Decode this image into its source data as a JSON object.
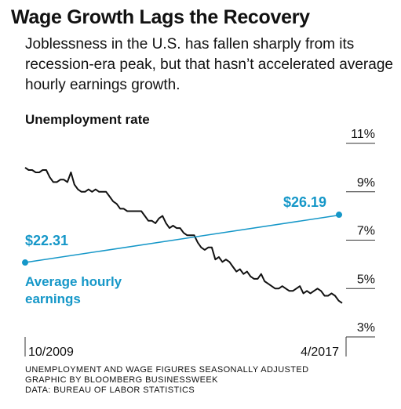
{
  "chart_data": {
    "type": "line",
    "title": "Wage Growth Lags the Recovery",
    "subtitle": "Joblessness in the U.S. has fallen sharply from its recession-era peak, but that hasn’t accelerated average hourly earnings growth.",
    "notes": [
      "UNEMPLOYMENT AND WAGE FIGURES SEASONALLY ADJUSTED",
      "GRAPHIC BY BLOOMBERG BUSINESSWEEK",
      "DATA: BUREAU OF LABOR STATISTICS"
    ],
    "categories": [
      "10/2009",
      null,
      null,
      null,
      null,
      null,
      null,
      null,
      null,
      null,
      null,
      null,
      null,
      null,
      null,
      null,
      null,
      null,
      null,
      null,
      null,
      null,
      null,
      null,
      null,
      null,
      null,
      null,
      null,
      null,
      null,
      null,
      null,
      null,
      null,
      null,
      null,
      null,
      null,
      null,
      null,
      null,
      null,
      null,
      null,
      null,
      null,
      null,
      null,
      null,
      null,
      null,
      null,
      null,
      null,
      null,
      null,
      null,
      null,
      null,
      null,
      null,
      null,
      null,
      null,
      null,
      null,
      null,
      null,
      null,
      null,
      null,
      null,
      null,
      null,
      null,
      null,
      null,
      null,
      null,
      null,
      null,
      null,
      null,
      null,
      null,
      null,
      null,
      null,
      null,
      "4/2017"
    ],
    "series": [
      {
        "name": "Unemployment rate",
        "color": "#111111",
        "values": [
          10.0,
          9.9,
          9.9,
          9.8,
          9.8,
          9.9,
          9.9,
          9.6,
          9.4,
          9.4,
          9.5,
          9.5,
          9.4,
          9.8,
          9.3,
          9.1,
          9.0,
          9.0,
          9.1,
          9.0,
          9.1,
          9.0,
          9.0,
          9.0,
          8.8,
          8.6,
          8.5,
          8.3,
          8.3,
          8.2,
          8.2,
          8.2,
          8.2,
          8.2,
          8.0,
          7.8,
          7.8,
          7.7,
          7.9,
          8.0,
          7.7,
          7.5,
          7.6,
          7.5,
          7.5,
          7.3,
          7.2,
          7.2,
          7.2,
          6.9,
          6.7,
          6.6,
          6.7,
          6.7,
          6.2,
          6.3,
          6.1,
          6.2,
          6.1,
          5.9,
          5.7,
          5.8,
          5.6,
          5.7,
          5.5,
          5.4,
          5.4,
          5.6,
          5.3,
          5.2,
          5.1,
          5.0,
          5.0,
          5.1,
          5.0,
          4.9,
          4.9,
          5.0,
          5.1,
          4.8,
          4.9,
          4.8,
          4.9,
          5.0,
          4.9,
          4.7,
          4.7,
          4.8,
          4.7,
          4.5,
          4.4
        ]
      },
      {
        "name": "Average hourly earnings",
        "color": "#1597c8",
        "axis": "y2",
        "values": [
          22.31,
          null,
          null,
          null,
          null,
          null,
          null,
          null,
          null,
          null,
          null,
          null,
          null,
          null,
          null,
          null,
          null,
          null,
          null,
          null,
          null,
          null,
          null,
          null,
          null,
          null,
          null,
          null,
          null,
          null,
          null,
          null,
          null,
          null,
          null,
          null,
          null,
          null,
          null,
          null,
          null,
          null,
          null,
          null,
          null,
          null,
          null,
          null,
          null,
          null,
          null,
          null,
          null,
          null,
          null,
          null,
          null,
          null,
          null,
          null,
          null,
          null,
          null,
          null,
          null,
          null,
          null,
          null,
          null,
          null,
          null,
          null,
          null,
          null,
          null,
          null,
          null,
          null,
          null,
          null,
          null,
          null,
          null,
          null,
          null,
          null,
          null,
          null,
          null,
          null,
          26.19
        ],
        "value_labels": [
          "$22.31",
          null,
          null,
          null,
          null,
          null,
          null,
          null,
          null,
          null,
          null,
          null,
          null,
          null,
          null,
          null,
          null,
          null,
          null,
          null,
          null,
          null,
          null,
          null,
          null,
          null,
          null,
          null,
          null,
          null,
          null,
          null,
          null,
          null,
          null,
          null,
          null,
          null,
          null,
          null,
          null,
          null,
          null,
          null,
          null,
          null,
          null,
          null,
          null,
          null,
          null,
          null,
          null,
          null,
          null,
          null,
          null,
          null,
          null,
          null,
          null,
          null,
          null,
          null,
          null,
          null,
          null,
          null,
          null,
          null,
          null,
          null,
          null,
          null,
          null,
          null,
          null,
          null,
          null,
          null,
          null,
          null,
          null,
          null,
          null,
          null,
          null,
          null,
          null,
          null,
          "$26.19"
        ]
      }
    ],
    "ylim": [
      3,
      11
    ],
    "yticks": [
      {
        "value": 3,
        "label": "3%"
      },
      {
        "value": 5,
        "label": "5%"
      },
      {
        "value": 7,
        "label": "7%"
      },
      {
        "value": 9,
        "label": "9%"
      },
      {
        "value": 11,
        "label": "11%"
      }
    ],
    "y2lim": [
      16.27,
      31.98
    ],
    "grid": true
  }
}
